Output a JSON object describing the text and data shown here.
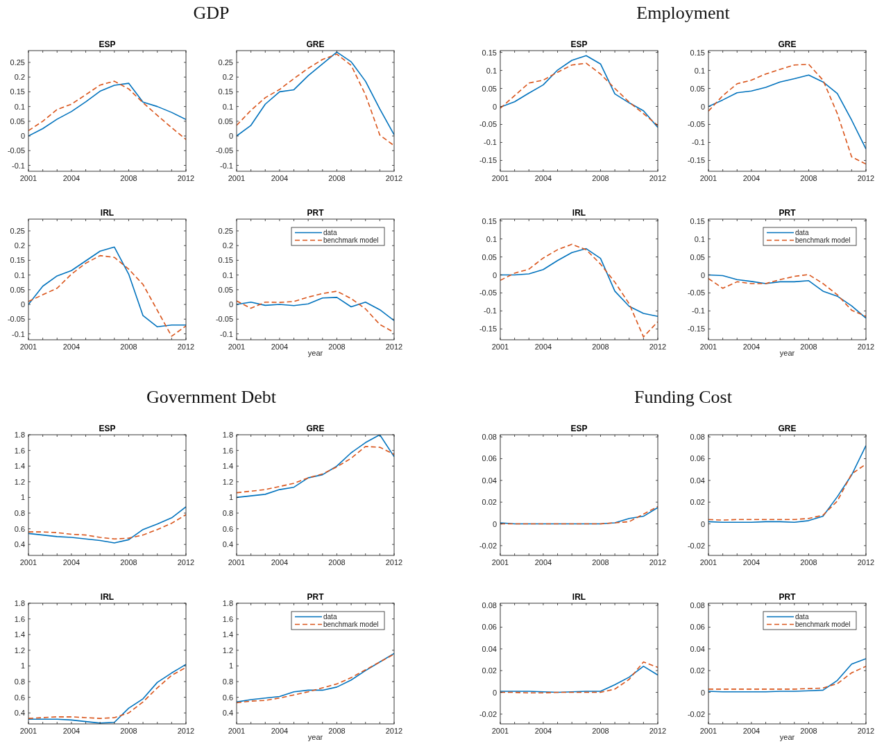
{
  "chart_data": [
    {
      "type": "line",
      "title": "ESP",
      "annotations": [
        "GDP"
      ],
      "x": [
        2001,
        2002,
        2003,
        2004,
        2005,
        2006,
        2007,
        2008,
        2009,
        2010,
        2011,
        2012
      ],
      "xlim": [
        2001,
        2012
      ],
      "xticks": [
        2001,
        {
          "value": 2002,
          "label": null
        },
        {
          "value": 2003,
          "label": null
        },
        2004,
        {
          "value": 2005,
          "label": null
        },
        {
          "value": 2006,
          "label": null
        },
        {
          "value": 2007,
          "label": null
        },
        2008,
        {
          "value": 2009,
          "label": null
        },
        {
          "value": 2010,
          "label": null
        },
        {
          "value": 2011,
          "label": null
        },
        2012
      ],
      "ylim": [
        -0.12,
        0.29
      ],
      "yticks": [
        -0.1,
        -0.05,
        0,
        0.05,
        0.1,
        0.15,
        0.2,
        0.25
      ],
      "series": [
        {
          "color": "#0072bd",
          "line_style": "solid",
          "values": [
            0,
            0.025,
            0.057,
            0.083,
            0.116,
            0.152,
            0.172,
            0.179,
            0.115,
            0.1,
            0.08,
            0.056
          ]
        },
        {
          "color": "#d95319",
          "line_style": "dashed",
          "values": [
            0.018,
            0.05,
            0.09,
            0.108,
            0.14,
            0.173,
            0.186,
            0.16,
            0.113,
            0.07,
            0.028,
            -0.012
          ]
        }
      ]
    },
    {
      "type": "line",
      "title": "GRE",
      "x": [
        2001,
        2002,
        2003,
        2004,
        2005,
        2006,
        2007,
        2008,
        2009,
        2010,
        2011,
        2012
      ],
      "xlim": [
        2001,
        2012
      ],
      "xticks": [
        2001,
        {
          "value": 2002,
          "label": null
        },
        {
          "value": 2003,
          "label": null
        },
        2004,
        {
          "value": 2005,
          "label": null
        },
        {
          "value": 2006,
          "label": null
        },
        {
          "value": 2007,
          "label": null
        },
        2008,
        {
          "value": 2009,
          "label": null
        },
        {
          "value": 2010,
          "label": null
        },
        {
          "value": 2011,
          "label": null
        },
        2012
      ],
      "ylim": [
        -0.12,
        0.29
      ],
      "yticks": [
        -0.1,
        -0.05,
        0,
        0.05,
        0.1,
        0.15,
        0.2,
        0.25
      ],
      "series": [
        {
          "color": "#0072bd",
          "line_style": "solid",
          "values": [
            0,
            0.036,
            0.108,
            0.15,
            0.157,
            0.205,
            0.245,
            0.285,
            0.252,
            0.186,
            0.092,
            0.004
          ]
        },
        {
          "color": "#d95319",
          "line_style": "dashed",
          "values": [
            0.036,
            0.087,
            0.13,
            0.158,
            0.195,
            0.23,
            0.26,
            0.278,
            0.24,
            0.14,
            0.003,
            -0.033
          ]
        }
      ]
    },
    {
      "type": "line",
      "title": "IRL",
      "x": [
        2001,
        2002,
        2003,
        2004,
        2005,
        2006,
        2007,
        2008,
        2009,
        2010,
        2011,
        2012
      ],
      "xlim": [
        2001,
        2012
      ],
      "xticks": [
        2001,
        {
          "value": 2002,
          "label": null
        },
        {
          "value": 2003,
          "label": null
        },
        2004,
        {
          "value": 2005,
          "label": null
        },
        {
          "value": 2006,
          "label": null
        },
        {
          "value": 2007,
          "label": null
        },
        2008,
        {
          "value": 2009,
          "label": null
        },
        {
          "value": 2010,
          "label": null
        },
        {
          "value": 2011,
          "label": null
        },
        2012
      ],
      "ylim": [
        -0.12,
        0.29
      ],
      "yticks": [
        -0.1,
        -0.05,
        0,
        0.05,
        0.1,
        0.15,
        0.2,
        0.25
      ],
      "series": [
        {
          "color": "#0072bd",
          "line_style": "solid",
          "values": [
            0,
            0.062,
            0.097,
            0.115,
            0.148,
            0.181,
            0.195,
            0.103,
            -0.038,
            -0.076,
            -0.07,
            -0.07
          ]
        },
        {
          "color": "#d95319",
          "line_style": "dashed",
          "values": [
            0.01,
            0.033,
            0.055,
            0.103,
            0.14,
            0.166,
            0.16,
            0.12,
            0.068,
            -0.02,
            -0.108,
            -0.073
          ]
        }
      ]
    },
    {
      "type": "line",
      "title": "PRT",
      "xlabel": "year",
      "legend": "top right",
      "x": [
        2001,
        2002,
        2003,
        2004,
        2005,
        2006,
        2007,
        2008,
        2009,
        2010,
        2011,
        2012
      ],
      "xlim": [
        2001,
        2012
      ],
      "xticks": [
        2001,
        {
          "value": 2002,
          "label": null
        },
        {
          "value": 2003,
          "label": null
        },
        2004,
        {
          "value": 2005,
          "label": null
        },
        {
          "value": 2006,
          "label": null
        },
        {
          "value": 2007,
          "label": null
        },
        2008,
        {
          "value": 2009,
          "label": null
        },
        {
          "value": 2010,
          "label": null
        },
        {
          "value": 2011,
          "label": null
        },
        2012
      ],
      "ylim": [
        -0.12,
        0.29
      ],
      "yticks": [
        -0.1,
        -0.05,
        0,
        0.05,
        0.1,
        0.15,
        0.2,
        0.25
      ],
      "series": [
        {
          "name": "data",
          "color": "#0072bd",
          "line_style": "solid",
          "values": [
            0,
            0.008,
            -0.003,
            0,
            -0.004,
            0.002,
            0.022,
            0.024,
            -0.008,
            0.008,
            -0.018,
            -0.055
          ]
        },
        {
          "name": "benchmark model",
          "color": "#d95319",
          "line_style": "dashed",
          "values": [
            0.012,
            -0.013,
            0.008,
            0.007,
            0.01,
            0.025,
            0.037,
            0.045,
            0.02,
            -0.015,
            -0.068,
            -0.095
          ]
        }
      ]
    },
    {
      "type": "line",
      "title": "ESP",
      "annotations": [
        "Employment"
      ],
      "x": [
        2001,
        2002,
        2003,
        2004,
        2005,
        2006,
        2007,
        2008,
        2009,
        2010,
        2011,
        2012
      ],
      "xlim": [
        2001,
        2012
      ],
      "xticks": [
        2001,
        {
          "value": 2002,
          "label": null
        },
        {
          "value": 2003,
          "label": null
        },
        2004,
        {
          "value": 2005,
          "label": null
        },
        {
          "value": 2006,
          "label": null
        },
        {
          "value": 2007,
          "label": null
        },
        2008,
        {
          "value": 2009,
          "label": null
        },
        {
          "value": 2010,
          "label": null
        },
        {
          "value": 2011,
          "label": null
        },
        2012
      ],
      "ylim": [
        -0.18,
        0.155
      ],
      "yticks": [
        -0.15,
        -0.1,
        -0.05,
        0,
        0.05,
        0.1,
        0.15
      ],
      "series": [
        {
          "color": "#0072bd",
          "line_style": "solid",
          "values": [
            -0.002,
            0.013,
            0.037,
            0.06,
            0.101,
            0.128,
            0.141,
            0.118,
            0.035,
            0.01,
            -0.012,
            -0.058
          ]
        },
        {
          "color": "#d95319",
          "line_style": "dashed",
          "values": [
            -0.005,
            0.03,
            0.065,
            0.073,
            0.095,
            0.115,
            0.12,
            0.09,
            0.05,
            0.012,
            -0.02,
            -0.053
          ]
        }
      ]
    },
    {
      "type": "line",
      "title": "GRE",
      "x": [
        2001,
        2002,
        2003,
        2004,
        2005,
        2006,
        2007,
        2008,
        2009,
        2010,
        2011,
        2012
      ],
      "xlim": [
        2001,
        2012
      ],
      "xticks": [
        2001,
        {
          "value": 2002,
          "label": null
        },
        {
          "value": 2003,
          "label": null
        },
        2004,
        {
          "value": 2005,
          "label": null
        },
        {
          "value": 2006,
          "label": null
        },
        {
          "value": 2007,
          "label": null
        },
        2008,
        {
          "value": 2009,
          "label": null
        },
        {
          "value": 2010,
          "label": null
        },
        {
          "value": 2011,
          "label": null
        },
        2012
      ],
      "ylim": [
        -0.18,
        0.155
      ],
      "yticks": [
        -0.15,
        -0.1,
        -0.05,
        0,
        0.05,
        0.1,
        0.15
      ],
      "series": [
        {
          "color": "#0072bd",
          "line_style": "solid",
          "values": [
            0,
            0.018,
            0.038,
            0.043,
            0.053,
            0.068,
            0.077,
            0.087,
            0.068,
            0.036,
            -0.038,
            -0.118
          ]
        },
        {
          "color": "#d95319",
          "line_style": "dashed",
          "values": [
            -0.013,
            0.03,
            0.063,
            0.073,
            0.09,
            0.103,
            0.115,
            0.117,
            0.073,
            -0.02,
            -0.14,
            -0.16
          ]
        }
      ]
    },
    {
      "type": "line",
      "title": "IRL",
      "x": [
        2001,
        2002,
        2003,
        2004,
        2005,
        2006,
        2007,
        2008,
        2009,
        2010,
        2011,
        2012
      ],
      "xlim": [
        2001,
        2012
      ],
      "xticks": [
        2001,
        {
          "value": 2002,
          "label": null
        },
        {
          "value": 2003,
          "label": null
        },
        2004,
        {
          "value": 2005,
          "label": null
        },
        {
          "value": 2006,
          "label": null
        },
        {
          "value": 2007,
          "label": null
        },
        2008,
        {
          "value": 2009,
          "label": null
        },
        {
          "value": 2010,
          "label": null
        },
        {
          "value": 2011,
          "label": null
        },
        2012
      ],
      "ylim": [
        -0.18,
        0.155
      ],
      "yticks": [
        -0.15,
        -0.1,
        -0.05,
        0,
        0.05,
        0.1,
        0.15
      ],
      "series": [
        {
          "color": "#0072bd",
          "line_style": "solid",
          "values": [
            0,
            0,
            0.003,
            0.015,
            0.04,
            0.062,
            0.073,
            0.046,
            -0.045,
            -0.087,
            -0.107,
            -0.115
          ]
        },
        {
          "color": "#d95319",
          "line_style": "dashed",
          "values": [
            -0.015,
            0.005,
            0.016,
            0.047,
            0.07,
            0.085,
            0.07,
            0.03,
            -0.02,
            -0.08,
            -0.172,
            -0.13
          ]
        }
      ]
    },
    {
      "type": "line",
      "title": "PRT",
      "xlabel": "year",
      "legend": "top right",
      "x": [
        2001,
        2002,
        2003,
        2004,
        2005,
        2006,
        2007,
        2008,
        2009,
        2010,
        2011,
        2012
      ],
      "xlim": [
        2001,
        2012
      ],
      "xticks": [
        2001,
        {
          "value": 2002,
          "label": null
        },
        {
          "value": 2003,
          "label": null
        },
        2004,
        {
          "value": 2005,
          "label": null
        },
        {
          "value": 2006,
          "label": null
        },
        {
          "value": 2007,
          "label": null
        },
        2008,
        {
          "value": 2009,
          "label": null
        },
        {
          "value": 2010,
          "label": null
        },
        {
          "value": 2011,
          "label": null
        },
        2012
      ],
      "ylim": [
        -0.18,
        0.155
      ],
      "yticks": [
        -0.15,
        -0.1,
        -0.05,
        0,
        0.05,
        0.1,
        0.15
      ],
      "series": [
        {
          "name": "data",
          "color": "#0072bd",
          "line_style": "solid",
          "values": [
            0,
            -0.002,
            -0.013,
            -0.018,
            -0.024,
            -0.019,
            -0.019,
            -0.016,
            -0.045,
            -0.059,
            -0.086,
            -0.12
          ]
        },
        {
          "name": "benchmark model",
          "color": "#d95319",
          "line_style": "dashed",
          "values": [
            -0.01,
            -0.037,
            -0.019,
            -0.024,
            -0.024,
            -0.013,
            -0.004,
            0.001,
            -0.024,
            -0.055,
            -0.098,
            -0.115
          ]
        }
      ]
    },
    {
      "type": "line",
      "title": "ESP",
      "annotations": [
        "Government Debt"
      ],
      "x": [
        2001,
        2002,
        2003,
        2004,
        2005,
        2006,
        2007,
        2008,
        2009,
        2010,
        2011,
        2012
      ],
      "xlim": [
        2001,
        2012
      ],
      "xticks": [
        2001,
        {
          "value": 2002,
          "label": null
        },
        {
          "value": 2003,
          "label": null
        },
        2004,
        {
          "value": 2005,
          "label": null
        },
        {
          "value": 2006,
          "label": null
        },
        {
          "value": 2007,
          "label": null
        },
        2008,
        {
          "value": 2009,
          "label": null
        },
        {
          "value": 2010,
          "label": null
        },
        {
          "value": 2011,
          "label": null
        },
        2012
      ],
      "ylim": [
        0.26,
        1.8
      ],
      "yticks": [
        0.4,
        0.6,
        0.8,
        1,
        1.2,
        1.4,
        1.6,
        1.8
      ],
      "series": [
        {
          "color": "#0072bd",
          "line_style": "solid",
          "values": [
            0.54,
            0.52,
            0.5,
            0.49,
            0.47,
            0.45,
            0.42,
            0.46,
            0.59,
            0.66,
            0.74,
            0.88
          ]
        },
        {
          "color": "#d95319",
          "line_style": "dashed",
          "values": [
            0.56,
            0.56,
            0.55,
            0.53,
            0.52,
            0.49,
            0.47,
            0.48,
            0.52,
            0.59,
            0.67,
            0.78
          ]
        }
      ]
    },
    {
      "type": "line",
      "title": "GRE",
      "x": [
        2001,
        2002,
        2003,
        2004,
        2005,
        2006,
        2007,
        2008,
        2009,
        2010,
        2011,
        2012
      ],
      "xlim": [
        2001,
        2012
      ],
      "xticks": [
        2001,
        {
          "value": 2002,
          "label": null
        },
        {
          "value": 2003,
          "label": null
        },
        2004,
        {
          "value": 2005,
          "label": null
        },
        {
          "value": 2006,
          "label": null
        },
        {
          "value": 2007,
          "label": null
        },
        2008,
        {
          "value": 2009,
          "label": null
        },
        {
          "value": 2010,
          "label": null
        },
        {
          "value": 2011,
          "label": null
        },
        2012
      ],
      "ylim": [
        0.26,
        1.8
      ],
      "yticks": [
        0.4,
        0.6,
        0.8,
        1,
        1.2,
        1.4,
        1.6,
        1.8
      ],
      "series": [
        {
          "color": "#0072bd",
          "line_style": "solid",
          "values": [
            1,
            1.02,
            1.04,
            1.1,
            1.13,
            1.25,
            1.29,
            1.4,
            1.57,
            1.7,
            1.8,
            1.52
          ]
        },
        {
          "color": "#d95319",
          "line_style": "dashed",
          "values": [
            1.06,
            1.08,
            1.1,
            1.14,
            1.18,
            1.25,
            1.3,
            1.39,
            1.5,
            1.65,
            1.64,
            1.55
          ]
        }
      ]
    },
    {
      "type": "line",
      "title": "IRL",
      "x": [
        2001,
        2002,
        2003,
        2004,
        2005,
        2006,
        2007,
        2008,
        2009,
        2010,
        2011,
        2012
      ],
      "xlim": [
        2001,
        2012
      ],
      "xticks": [
        2001,
        {
          "value": 2002,
          "label": null
        },
        {
          "value": 2003,
          "label": null
        },
        2004,
        {
          "value": 2005,
          "label": null
        },
        {
          "value": 2006,
          "label": null
        },
        {
          "value": 2007,
          "label": null
        },
        2008,
        {
          "value": 2009,
          "label": null
        },
        {
          "value": 2010,
          "label": null
        },
        {
          "value": 2011,
          "label": null
        },
        2012
      ],
      "ylim": [
        0.26,
        1.8
      ],
      "yticks": [
        0.4,
        0.6,
        0.8,
        1,
        1.2,
        1.4,
        1.6,
        1.8
      ],
      "series": [
        {
          "color": "#0072bd",
          "line_style": "solid",
          "values": [
            0.32,
            0.32,
            0.32,
            0.31,
            0.29,
            0.27,
            0.28,
            0.46,
            0.58,
            0.79,
            0.91,
            1.02
          ]
        },
        {
          "color": "#d95319",
          "line_style": "dashed",
          "values": [
            0.33,
            0.34,
            0.35,
            0.35,
            0.34,
            0.33,
            0.34,
            0.4,
            0.54,
            0.72,
            0.88,
            0.98
          ]
        }
      ]
    },
    {
      "type": "line",
      "title": "PRT",
      "xlabel": "year",
      "legend": "top right",
      "x": [
        2001,
        2002,
        2003,
        2004,
        2005,
        2006,
        2007,
        2008,
        2009,
        2010,
        2011,
        2012
      ],
      "xlim": [
        2001,
        2012
      ],
      "xticks": [
        2001,
        {
          "value": 2002,
          "label": null
        },
        {
          "value": 2003,
          "label": null
        },
        2004,
        {
          "value": 2005,
          "label": null
        },
        {
          "value": 2006,
          "label": null
        },
        {
          "value": 2007,
          "label": null
        },
        2008,
        {
          "value": 2009,
          "label": null
        },
        {
          "value": 2010,
          "label": null
        },
        {
          "value": 2011,
          "label": null
        },
        2012
      ],
      "ylim": [
        0.26,
        1.8
      ],
      "yticks": [
        0.4,
        0.6,
        0.8,
        1,
        1.2,
        1.4,
        1.6,
        1.8
      ],
      "series": [
        {
          "name": "data",
          "color": "#0072bd",
          "line_style": "solid",
          "values": [
            0.54,
            0.57,
            0.59,
            0.61,
            0.67,
            0.69,
            0.69,
            0.73,
            0.82,
            0.94,
            1.05,
            1.16
          ]
        },
        {
          "name": "benchmark model",
          "color": "#d95319",
          "line_style": "dashed",
          "values": [
            0.53,
            0.55,
            0.56,
            0.59,
            0.63,
            0.67,
            0.72,
            0.77,
            0.85,
            0.95,
            1.05,
            1.15
          ]
        }
      ]
    },
    {
      "type": "line",
      "title": "ESP",
      "annotations": [
        "Funding Cost"
      ],
      "x": [
        2001,
        2002,
        2003,
        2004,
        2005,
        2006,
        2007,
        2008,
        2009,
        2010,
        2011,
        2012
      ],
      "xlim": [
        2001,
        2012
      ],
      "xticks": [
        2001,
        {
          "value": 2002,
          "label": null
        },
        {
          "value": 2003,
          "label": null
        },
        2004,
        {
          "value": 2005,
          "label": null
        },
        {
          "value": 2006,
          "label": null
        },
        {
          "value": 2007,
          "label": null
        },
        2008,
        {
          "value": 2009,
          "label": null
        },
        {
          "value": 2010,
          "label": null
        },
        {
          "value": 2011,
          "label": null
        },
        2012
      ],
      "ylim": [
        -0.029,
        0.082
      ],
      "yticks": [
        -0.02,
        0,
        0.02,
        0.04,
        0.06,
        0.08
      ],
      "series": [
        {
          "color": "#0072bd",
          "line_style": "solid",
          "values": [
            0.001,
            0,
            0,
            0,
            0,
            0,
            0,
            0,
            0.001,
            0.005,
            0.007,
            0.015
          ]
        },
        {
          "color": "#d95319",
          "line_style": "dashed",
          "values": [
            0,
            0,
            0,
            0,
            0,
            0,
            0,
            0,
            0.001,
            0.002,
            0.009,
            0.016
          ]
        }
      ]
    },
    {
      "type": "line",
      "title": "GRE",
      "x": [
        2001,
        2002,
        2003,
        2004,
        2005,
        2006,
        2007,
        2008,
        2009,
        2010,
        2011,
        2012
      ],
      "xlim": [
        2001,
        2012
      ],
      "xticks": [
        2001,
        {
          "value": 2002,
          "label": null
        },
        {
          "value": 2003,
          "label": null
        },
        2004,
        {
          "value": 2005,
          "label": null
        },
        {
          "value": 2006,
          "label": null
        },
        {
          "value": 2007,
          "label": null
        },
        2008,
        {
          "value": 2009,
          "label": null
        },
        {
          "value": 2010,
          "label": null
        },
        {
          "value": 2011,
          "label": null
        },
        2012
      ],
      "ylim": [
        -0.029,
        0.082
      ],
      "yticks": [
        -0.02,
        0,
        0.02,
        0.04,
        0.06,
        0.08
      ],
      "series": [
        {
          "color": "#0072bd",
          "line_style": "solid",
          "values": [
            0.002,
            0.0015,
            0.0015,
            0.0015,
            0.002,
            0.002,
            0.0015,
            0.003,
            0.007,
            0.025,
            0.045,
            0.072
          ]
        },
        {
          "color": "#d95319",
          "line_style": "dashed",
          "values": [
            0.004,
            0.0035,
            0.004,
            0.004,
            0.004,
            0.004,
            0.004,
            0.005,
            0.008,
            0.021,
            0.046,
            0.055
          ]
        }
      ]
    },
    {
      "type": "line",
      "title": "IRL",
      "x": [
        2001,
        2002,
        2003,
        2004,
        2005,
        2006,
        2007,
        2008,
        2009,
        2010,
        2011,
        2012
      ],
      "xlim": [
        2001,
        2012
      ],
      "xticks": [
        2001,
        {
          "value": 2002,
          "label": null
        },
        {
          "value": 2003,
          "label": null
        },
        2004,
        {
          "value": 2005,
          "label": null
        },
        {
          "value": 2006,
          "label": null
        },
        {
          "value": 2007,
          "label": null
        },
        2008,
        {
          "value": 2009,
          "label": null
        },
        {
          "value": 2010,
          "label": null
        },
        {
          "value": 2011,
          "label": null
        },
        2012
      ],
      "ylim": [
        -0.029,
        0.082
      ],
      "yticks": [
        -0.02,
        0,
        0.02,
        0.04,
        0.06,
        0.08
      ],
      "series": [
        {
          "color": "#0072bd",
          "line_style": "solid",
          "values": [
            0.001,
            0.001,
            0.001,
            0.0005,
            0,
            0.0005,
            0.001,
            0.001,
            0.007,
            0.014,
            0.024,
            0.016
          ]
        },
        {
          "color": "#d95319",
          "line_style": "dashed",
          "values": [
            0,
            0,
            -0.0005,
            -0.0005,
            0,
            0,
            0,
            0,
            0.003,
            0.012,
            0.028,
            0.023
          ]
        }
      ]
    },
    {
      "type": "line",
      "title": "PRT",
      "xlabel": "year",
      "legend": "top right",
      "x": [
        2001,
        2002,
        2003,
        2004,
        2005,
        2006,
        2007,
        2008,
        2009,
        2010,
        2011,
        2012
      ],
      "xlim": [
        2001,
        2012
      ],
      "xticks": [
        2001,
        {
          "value": 2002,
          "label": null
        },
        {
          "value": 2003,
          "label": null
        },
        2004,
        {
          "value": 2005,
          "label": null
        },
        {
          "value": 2006,
          "label": null
        },
        {
          "value": 2007,
          "label": null
        },
        2008,
        {
          "value": 2009,
          "label": null
        },
        {
          "value": 2010,
          "label": null
        },
        {
          "value": 2011,
          "label": null
        },
        2012
      ],
      "ylim": [
        -0.029,
        0.082
      ],
      "yticks": [
        -0.02,
        0,
        0.02,
        0.04,
        0.06,
        0.08
      ],
      "series": [
        {
          "name": "data",
          "color": "#0072bd",
          "line_style": "solid",
          "values": [
            0.001,
            0.0005,
            0.0005,
            0.0005,
            0.0005,
            0.001,
            0.001,
            0.0015,
            0.002,
            0.011,
            0.026,
            0.031
          ]
        },
        {
          "name": "benchmark model",
          "color": "#d95319",
          "line_style": "dashed",
          "values": [
            0.003,
            0.003,
            0.003,
            0.003,
            0.003,
            0.003,
            0.003,
            0.0035,
            0.004,
            0.008,
            0.018,
            0.024
          ]
        }
      ]
    }
  ]
}
